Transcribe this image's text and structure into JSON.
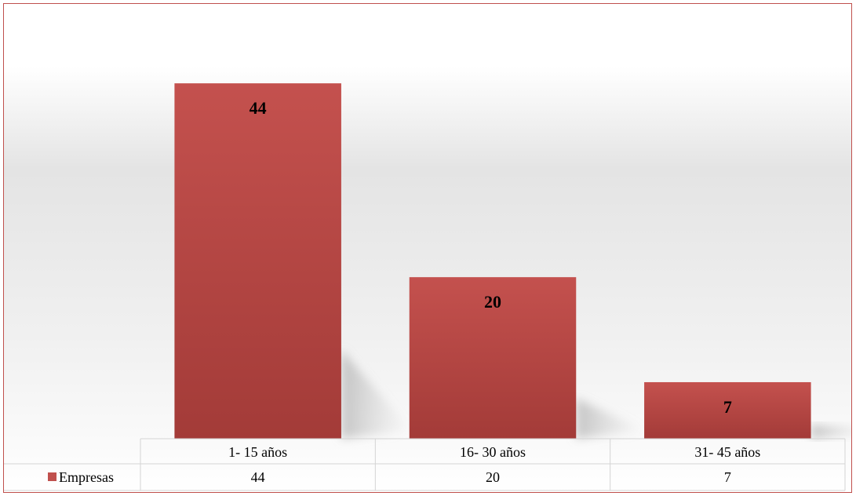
{
  "chart_data": {
    "type": "bar",
    "categories": [
      "1- 15 años",
      "16- 30 años",
      "31- 45 años"
    ],
    "series": [
      {
        "name": "Empresas",
        "values": [
          44,
          20,
          7
        ]
      }
    ],
    "data_labels": [
      "44",
      "20",
      "7"
    ],
    "ylim": [
      0,
      48
    ],
    "grid": false,
    "legend": "data-table",
    "colors": {
      "bar": "#c0504d",
      "bar_dark": "#a53c39",
      "frame": "#c0504d",
      "table_border": "#d4d4d4"
    }
  }
}
